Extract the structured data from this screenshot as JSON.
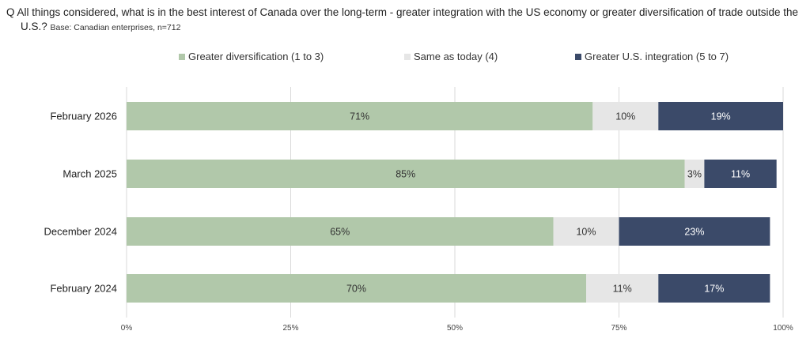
{
  "question": {
    "prefix": "Q",
    "line1": "All things considered, what is in the best interest of Canada over the long-term - greater integration with the US economy or greater diversification of trade outside the",
    "line2": "U.S.?",
    "base": "Base: Canadian enterprises,  n=712"
  },
  "colors": {
    "Greater diversification (1 to 3)": "#b1c8aa",
    "Same as today (4)": "#e6e6e6",
    "Greater U.S. integration (5 to 7)": "#3b4a69"
  },
  "chart_data": {
    "type": "bar",
    "orientation": "horizontal",
    "stacked": true,
    "categories": [
      "February 2026",
      "March 2025",
      "December 2024",
      "February 2024"
    ],
    "series": [
      {
        "name": "Greater diversification (1 to 3)",
        "values": [
          71,
          85,
          65,
          70
        ],
        "labels": [
          "71%",
          "85%",
          "65%",
          "70%"
        ]
      },
      {
        "name": "Same as today (4)",
        "values": [
          10,
          3,
          10,
          11
        ],
        "labels": [
          "10%",
          "3%",
          "10%",
          "11%"
        ]
      },
      {
        "name": "Greater U.S. integration (5 to 7)",
        "values": [
          19,
          11,
          23,
          17
        ],
        "labels": [
          "19%",
          "11%",
          "23%",
          "17%"
        ]
      }
    ],
    "xlim": [
      0,
      100
    ],
    "x_ticks": [
      "0%",
      "25%",
      "50%",
      "75%",
      "100%"
    ],
    "grid": true,
    "legend": "top"
  }
}
